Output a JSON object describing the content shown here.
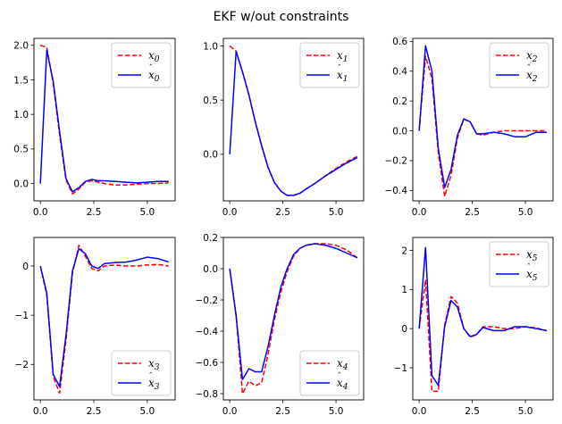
{
  "figure": {
    "suptitle": "EKF w/out constraints"
  },
  "colors": {
    "true_state": "#ff0000",
    "estimate": "#0000ff"
  },
  "chart_data": [
    {
      "type": "line",
      "xlim": [
        -0.3,
        6.3
      ],
      "ylim": [
        -0.25,
        2.1
      ],
      "xticks": [
        0,
        2.5,
        5
      ],
      "xtick_labels": [
        "0.0",
        "2.5",
        "5.0"
      ],
      "yticks": [
        0,
        0.5,
        1.0,
        1.5,
        2.0
      ],
      "ytick_labels": [
        "0.0",
        "0.5",
        "1.0",
        "1.5",
        "2.0"
      ],
      "legend_position": "top-right",
      "x": [
        0,
        0.3,
        0.6,
        0.9,
        1.2,
        1.5,
        1.8,
        2.1,
        2.4,
        2.7,
        3.0,
        3.5,
        4.0,
        4.5,
        5.0,
        5.5,
        6.0
      ],
      "series": [
        {
          "name": "$x_0$",
          "legend_text": "x",
          "legend_sub": "0",
          "hat": false,
          "style": "dashed",
          "color": "#ff0000",
          "values": [
            2.0,
            1.97,
            1.45,
            0.7,
            0.05,
            -0.15,
            -0.08,
            0.02,
            0.04,
            0.02,
            0.0,
            -0.02,
            -0.02,
            -0.01,
            0.0,
            0.0,
            0.01
          ]
        },
        {
          "name": "$\\hat{x}_0$",
          "legend_text": "x",
          "legend_sub": "0",
          "hat": true,
          "style": "solid",
          "color": "#0000ff",
          "values": [
            0.0,
            1.93,
            1.48,
            0.75,
            0.07,
            -0.12,
            -0.06,
            0.03,
            0.06,
            0.04,
            0.04,
            0.03,
            0.02,
            0.01,
            0.02,
            0.03,
            0.03
          ]
        }
      ]
    },
    {
      "type": "line",
      "xlim": [
        -0.3,
        6.3
      ],
      "ylim": [
        -0.43,
        1.07
      ],
      "xticks": [
        0,
        2.5,
        5
      ],
      "xtick_labels": [
        "0.0",
        "2.5",
        "5.0"
      ],
      "yticks": [
        0,
        0.5,
        1.0
      ],
      "ytick_labels": [
        "0.0",
        "0.5",
        "1.0"
      ],
      "legend_position": "top-right",
      "x": [
        0,
        0.3,
        0.6,
        0.9,
        1.2,
        1.5,
        1.8,
        2.1,
        2.4,
        2.7,
        3.0,
        3.3,
        3.6,
        4.0,
        4.5,
        5.0,
        5.5,
        6.0
      ],
      "series": [
        {
          "name": "$x_1$",
          "legend_text": "x",
          "legend_sub": "1",
          "hat": false,
          "style": "dashed",
          "color": "#ff0000",
          "values": [
            1.0,
            0.95,
            0.76,
            0.55,
            0.3,
            0.08,
            -0.12,
            -0.26,
            -0.34,
            -0.38,
            -0.38,
            -0.36,
            -0.32,
            -0.27,
            -0.2,
            -0.13,
            -0.07,
            -0.02
          ]
        },
        {
          "name": "$\\hat{x}_1$",
          "legend_text": "x",
          "legend_sub": "1",
          "hat": true,
          "style": "solid",
          "color": "#0000ff",
          "values": [
            0.0,
            0.95,
            0.76,
            0.55,
            0.3,
            0.08,
            -0.12,
            -0.26,
            -0.34,
            -0.38,
            -0.38,
            -0.36,
            -0.32,
            -0.27,
            -0.2,
            -0.14,
            -0.08,
            -0.03
          ]
        }
      ]
    },
    {
      "type": "line",
      "xlim": [
        -0.3,
        6.3
      ],
      "ylim": [
        -0.47,
        0.62
      ],
      "xticks": [
        0,
        2.5,
        5
      ],
      "xtick_labels": [
        "0.0",
        "2.5",
        "5.0"
      ],
      "yticks": [
        -0.4,
        -0.2,
        0,
        0.2,
        0.4,
        0.6
      ],
      "ytick_labels": [
        "−0.4",
        "−0.2",
        "0.0",
        "0.2",
        "0.4",
        "0.6"
      ],
      "legend_position": "top-right",
      "x": [
        0,
        0.3,
        0.6,
        0.9,
        1.2,
        1.5,
        1.8,
        2.1,
        2.4,
        2.7,
        3.0,
        3.5,
        4.0,
        4.5,
        5.0,
        5.5,
        6.0
      ],
      "series": [
        {
          "name": "$x_2$",
          "legend_text": "x",
          "legend_sub": "2",
          "hat": false,
          "style": "dashed",
          "color": "#ff0000",
          "values": [
            0.0,
            0.5,
            0.35,
            -0.15,
            -0.44,
            -0.3,
            -0.05,
            0.08,
            0.06,
            -0.02,
            -0.03,
            -0.01,
            0.0,
            0.0,
            0.0,
            0.0,
            0.0
          ]
        },
        {
          "name": "$\\hat{x}_2$",
          "legend_text": "x",
          "legend_sub": "2",
          "hat": true,
          "style": "solid",
          "color": "#0000ff",
          "values": [
            0.0,
            0.57,
            0.4,
            -0.12,
            -0.38,
            -0.26,
            -0.03,
            0.08,
            0.06,
            -0.02,
            -0.02,
            -0.01,
            -0.02,
            -0.04,
            -0.04,
            -0.01,
            -0.01
          ]
        }
      ]
    },
    {
      "type": "line",
      "xlim": [
        -0.3,
        6.3
      ],
      "ylim": [
        -2.72,
        0.58
      ],
      "xticks": [
        0,
        2.5,
        5
      ],
      "xtick_labels": [
        "0.0",
        "2.5",
        "5.0"
      ],
      "yticks": [
        -2,
        -1,
        0
      ],
      "ytick_labels": [
        "−2",
        "−1",
        "0"
      ],
      "legend_position": "bottom-right",
      "x": [
        0,
        0.3,
        0.6,
        0.9,
        1.2,
        1.5,
        1.8,
        2.1,
        2.4,
        2.7,
        3.0,
        3.5,
        4.0,
        4.5,
        5.0,
        5.5,
        6.0
      ],
      "series": [
        {
          "name": "$x_3$",
          "legend_text": "x",
          "legend_sub": "3",
          "hat": false,
          "style": "dashed",
          "color": "#ff0000",
          "values": [
            0.0,
            -0.6,
            -2.25,
            -2.58,
            -1.5,
            -0.15,
            0.42,
            0.2,
            -0.05,
            -0.1,
            0.0,
            0.02,
            0.0,
            0.0,
            0.02,
            0.03,
            0.0
          ]
        },
        {
          "name": "$\\hat{x}_3$",
          "legend_text": "x",
          "legend_sub": "3",
          "hat": true,
          "style": "solid",
          "color": "#0000ff",
          "values": [
            0.0,
            -0.55,
            -2.2,
            -2.45,
            -1.4,
            -0.1,
            0.35,
            0.25,
            0.0,
            -0.05,
            0.05,
            0.07,
            0.08,
            0.12,
            0.18,
            0.15,
            0.08
          ]
        }
      ]
    },
    {
      "type": "line",
      "xlim": [
        -0.3,
        6.3
      ],
      "ylim": [
        -0.84,
        0.2
      ],
      "xticks": [
        0,
        2.5,
        5
      ],
      "xtick_labels": [
        "0.0",
        "2.5",
        "5.0"
      ],
      "yticks": [
        -0.8,
        -0.6,
        -0.4,
        -0.2,
        0,
        0.2
      ],
      "ytick_labels": [
        "−0.8",
        "−0.6",
        "−0.4",
        "−0.2",
        "0.0",
        "0.2"
      ],
      "legend_position": "bottom-right",
      "x": [
        0,
        0.3,
        0.6,
        0.9,
        1.2,
        1.5,
        1.8,
        2.1,
        2.4,
        2.7,
        3.0,
        3.3,
        3.6,
        4.0,
        4.5,
        5.0,
        5.5,
        6.0
      ],
      "series": [
        {
          "name": "$x_4$",
          "legend_text": "x",
          "legend_sub": "4",
          "hat": false,
          "style": "dashed",
          "color": "#ff0000",
          "values": [
            0.0,
            -0.3,
            -0.8,
            -0.72,
            -0.75,
            -0.73,
            -0.55,
            -0.33,
            -0.15,
            -0.02,
            0.08,
            0.13,
            0.15,
            0.16,
            0.16,
            0.15,
            0.12,
            0.07
          ]
        },
        {
          "name": "$\\hat{x}_4$",
          "legend_text": "x",
          "legend_sub": "4",
          "hat": true,
          "style": "solid",
          "color": "#0000ff",
          "values": [
            0.0,
            -0.3,
            -0.71,
            -0.64,
            -0.66,
            -0.66,
            -0.5,
            -0.3,
            -0.12,
            0.0,
            0.09,
            0.13,
            0.15,
            0.16,
            0.15,
            0.13,
            0.1,
            0.07
          ]
        }
      ]
    },
    {
      "type": "line",
      "xlim": [
        -0.3,
        6.3
      ],
      "ylim": [
        -1.82,
        2.33
      ],
      "xticks": [
        0,
        2.5,
        5
      ],
      "xtick_labels": [
        "0.0",
        "2.5",
        "5.0"
      ],
      "yticks": [
        -1,
        0,
        1,
        2
      ],
      "ytick_labels": [
        "−1",
        "0",
        "1",
        "2"
      ],
      "legend_position": "top-right",
      "x": [
        0,
        0.3,
        0.6,
        0.9,
        1.2,
        1.5,
        1.8,
        2.1,
        2.4,
        2.7,
        3.0,
        3.5,
        4.0,
        4.5,
        5.0,
        5.5,
        6.0
      ],
      "series": [
        {
          "name": "$x_5$",
          "legend_text": "x",
          "legend_sub": "5",
          "hat": false,
          "style": "dashed",
          "color": "#ff0000",
          "values": [
            0.0,
            1.25,
            -1.6,
            -1.6,
            0.1,
            0.82,
            0.65,
            0.0,
            -0.22,
            -0.15,
            0.05,
            0.05,
            0.0,
            0.0,
            0.05,
            0.02,
            -0.05
          ]
        },
        {
          "name": "$\\hat{x}_5$",
          "legend_text": "x",
          "legend_sub": "5",
          "hat": true,
          "style": "solid",
          "color": "#0000ff",
          "values": [
            0.0,
            2.07,
            -1.2,
            -1.45,
            0.05,
            0.72,
            0.55,
            0.0,
            -0.2,
            -0.15,
            0.03,
            -0.05,
            -0.05,
            0.05,
            0.05,
            0.0,
            -0.05
          ]
        }
      ]
    }
  ]
}
